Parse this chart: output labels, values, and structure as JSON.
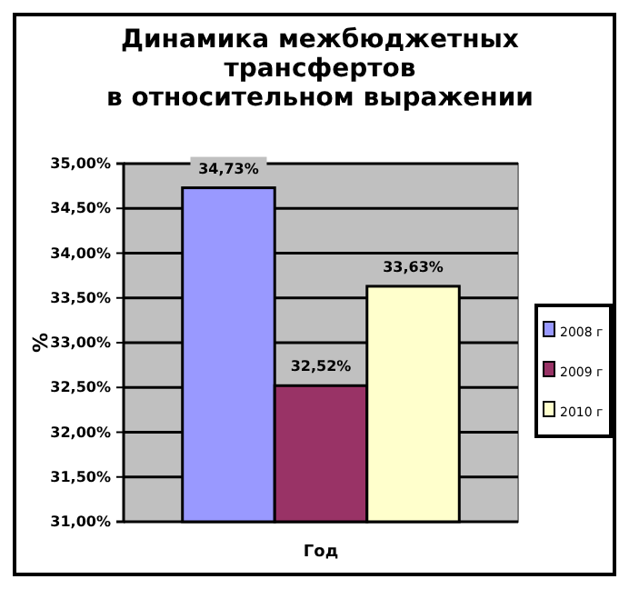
{
  "chart_data": {
    "type": "bar",
    "title": "Динамика межбюджетных трансфертов в относительном выражении",
    "xlabel": "Год",
    "ylabel": "%",
    "categories": [
      null
    ],
    "series": [
      {
        "name": "2008 г",
        "color": "#9999ff",
        "values": [
          34.73
        ],
        "value_labels": [
          "34,73%"
        ]
      },
      {
        "name": "2009 г",
        "color": "#993366",
        "values": [
          32.52
        ],
        "value_labels": [
          "32,52%"
        ]
      },
      {
        "name": "2010 г",
        "color": "#ffffcc",
        "values": [
          33.63
        ],
        "value_labels": [
          "33,63%"
        ]
      }
    ],
    "ylim": [
      31,
      35
    ],
    "yticks": [
      {
        "value": 31,
        "label": "31,00%"
      },
      {
        "value": 31.5,
        "label": "31,50%"
      },
      {
        "value": 32,
        "label": "32,00%"
      },
      {
        "value": 32.5,
        "label": "32,50%"
      },
      {
        "value": 33,
        "label": "33,00%"
      },
      {
        "value": 33.5,
        "label": "33,50%"
      },
      {
        "value": 34,
        "label": "34,00%"
      },
      {
        "value": 34.5,
        "label": "34,50%"
      },
      {
        "value": 35,
        "label": "35,00%"
      }
    ],
    "grid": "y",
    "legend": "right"
  }
}
